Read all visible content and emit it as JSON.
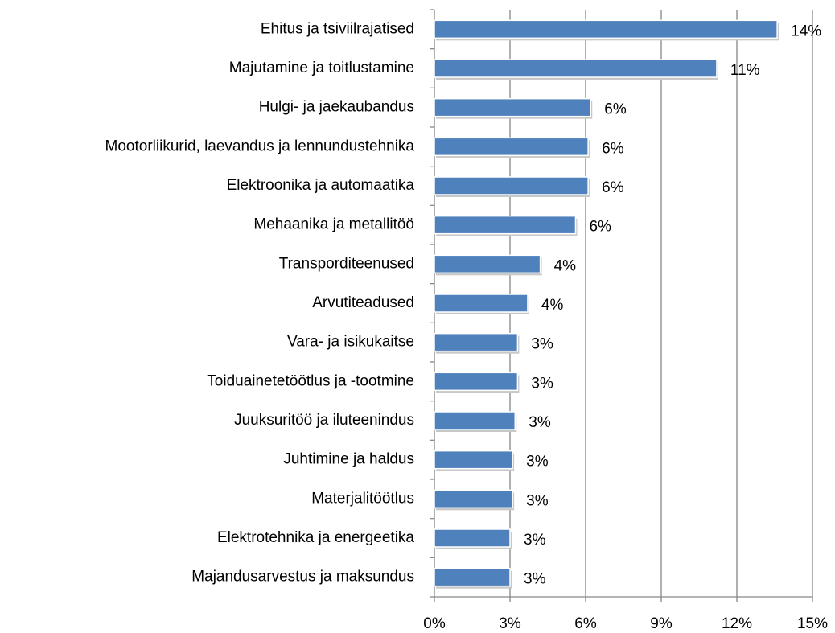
{
  "chart_data": {
    "type": "bar",
    "orientation": "horizontal",
    "categories": [
      "Ehitus ja tsiviilrajatised",
      "Majutamine ja toitlustamine",
      "Hulgi- ja jaekaubandus",
      "Mootorliikurid, laevandus ja lennundustehnika",
      "Elektroonika ja automaatika",
      "Mehaanika ja metallitöö",
      "Transporditeenused",
      "Arvutiteadused",
      "Vara- ja isikukaitse",
      "Toiduainetetöötlus ja -tootmine",
      "Juuksuritöö ja iluteenindus",
      "Juhtimine ja haldus",
      "Materjalitöötlus",
      "Elektrotehnika ja energeetika",
      "Majandusarvestus ja maksundus"
    ],
    "values": [
      13.6,
      11.2,
      6.2,
      6.1,
      6.1,
      5.6,
      4.2,
      3.7,
      3.3,
      3.3,
      3.2,
      3.1,
      3.1,
      3.0,
      3.0
    ],
    "value_labels": [
      "14%",
      "11%",
      "6%",
      "6%",
      "6%",
      "6%",
      "4%",
      "4%",
      "3%",
      "3%",
      "3%",
      "3%",
      "3%",
      "3%",
      "3%"
    ],
    "color": "#4f81bd",
    "xlim": [
      0,
      15
    ],
    "xticks": [
      {
        "value": 0,
        "label": "0%"
      },
      {
        "value": 3,
        "label": "3%"
      },
      {
        "value": 6,
        "label": "6%"
      },
      {
        "value": 9,
        "label": "9%"
      },
      {
        "value": 12,
        "label": "12%"
      },
      {
        "value": 15,
        "label": "15%"
      }
    ],
    "grid": true
  }
}
